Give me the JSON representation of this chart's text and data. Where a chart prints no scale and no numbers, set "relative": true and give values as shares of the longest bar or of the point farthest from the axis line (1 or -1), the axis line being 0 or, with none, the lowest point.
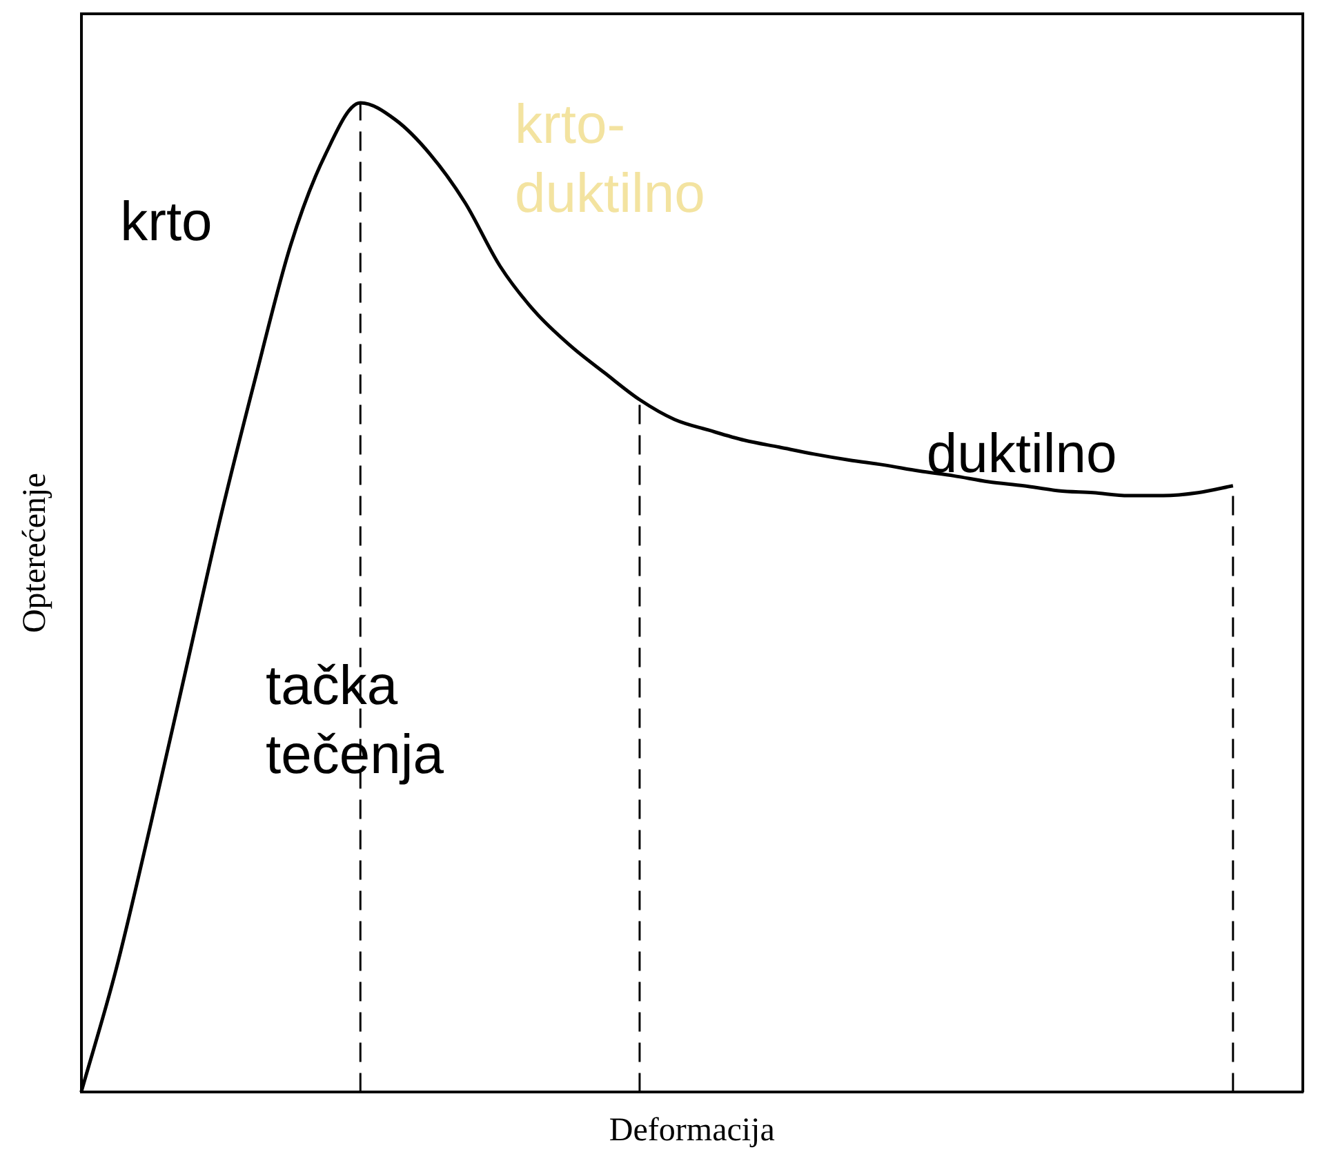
{
  "chart_data": {
    "type": "line",
    "relative": true,
    "xlabel": "Deformacija",
    "ylabel": "Opterećenje",
    "tick_labels": false,
    "grid": false,
    "legend": false,
    "marker": "none",
    "line_style": "solid",
    "categories": [
      null,
      null,
      null,
      null,
      null,
      null,
      null,
      null,
      null,
      null,
      null,
      null,
      null,
      null,
      null,
      null,
      null,
      null,
      null,
      null,
      null,
      null,
      null,
      null,
      null,
      null,
      null,
      null,
      null,
      null,
      null,
      null,
      null,
      null,
      null,
      null
    ],
    "series": [
      {
        "color": "#000000",
        "values": [
          0,
          0.124,
          0.272,
          0.427,
          0.582,
          0.723,
          0.856,
          0.948,
          1,
          0.983,
          0.948,
          0.899,
          0.835,
          0.789,
          0.755,
          0.727,
          0.7,
          0.68,
          0.669,
          0.659,
          0.652,
          0.645,
          0.639,
          0.634,
          0.628,
          0.623,
          0.617,
          0.613,
          0.608,
          0.606,
          0.603,
          0.603,
          0.606,
          0.613,
          null,
          null
        ]
      }
    ],
    "annotations": [
      "krto",
      "krto-\nduktilno",
      "duktilno",
      "tačka\ntečenja"
    ]
  }
}
